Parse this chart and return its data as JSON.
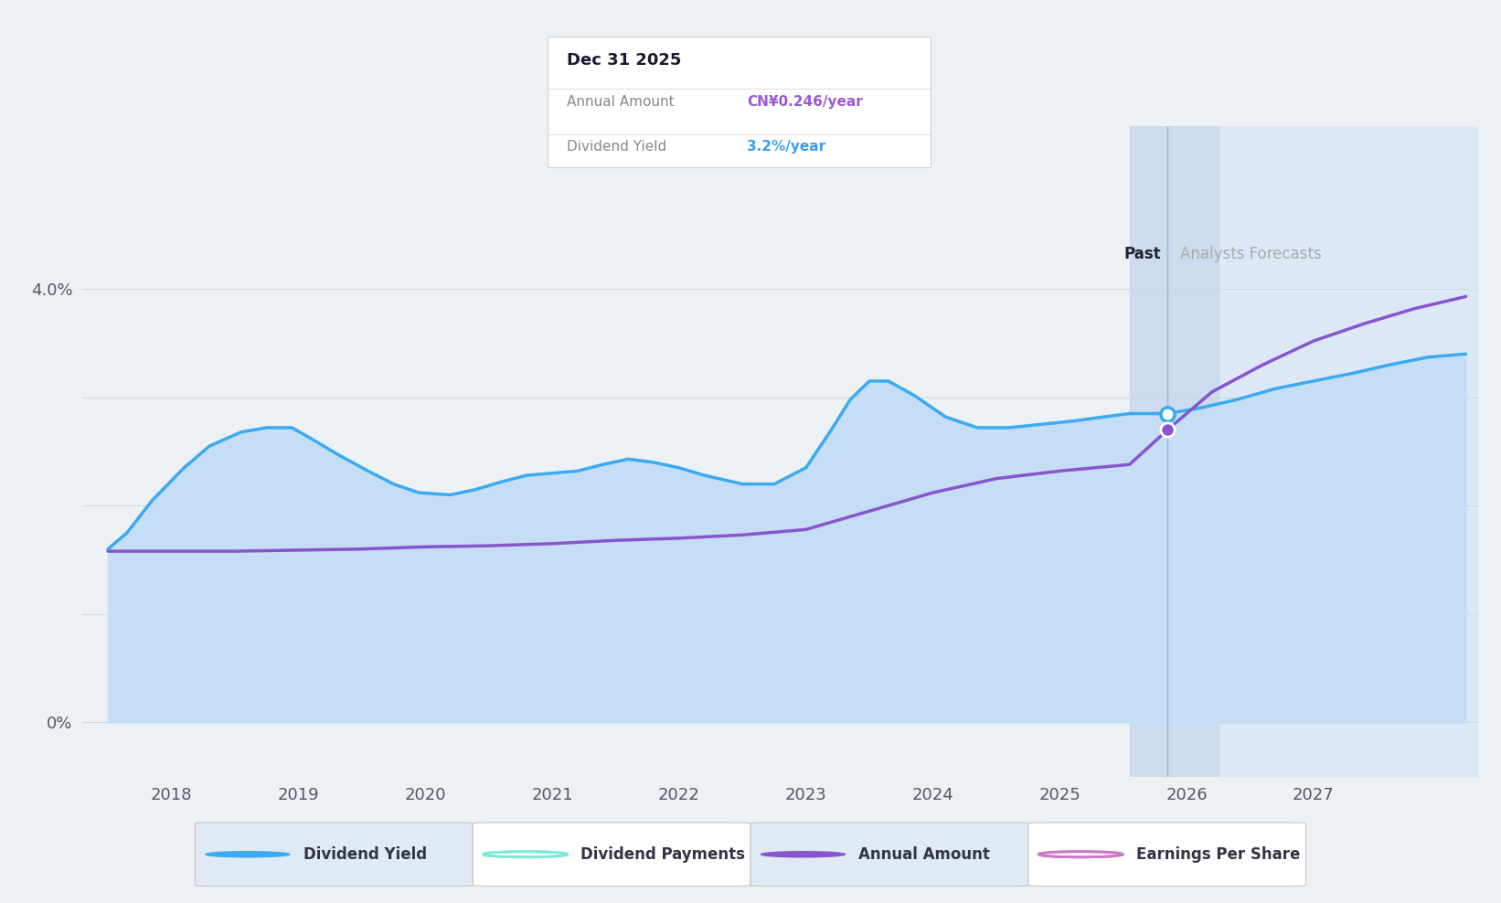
{
  "bg_color": "#eef1f4",
  "chart_fill_color": "#c5ddf5",
  "forecast_shade_color": "#dce8f5",
  "darker_band_color": "#c0d5ea",
  "tooltip": {
    "title": "Dec 31 2025",
    "annual_amount_label": "Annual Amount",
    "annual_amount_value": "CN¥0.246/year",
    "annual_amount_color": "#9b59d0",
    "dividend_yield_label": "Dividend Yield",
    "dividend_yield_value": "3.2%/year",
    "dividend_yield_color": "#3b9de8"
  },
  "dividend_yield_color": "#3aabf0",
  "annual_amount_color": "#8855cc",
  "grid_color": "#d0d8e0",
  "xlim": [
    2017.3,
    2028.3
  ],
  "ylim": [
    -0.5,
    5.5
  ],
  "past_line_x": 2025.85,
  "forecast_band_start": 2025.55,
  "forecast_band_end": 2026.25,
  "dividend_yield_x": [
    2017.5,
    2017.65,
    2017.85,
    2018.1,
    2018.3,
    2018.55,
    2018.75,
    2018.95,
    2019.1,
    2019.3,
    2019.55,
    2019.75,
    2019.95,
    2020.2,
    2020.4,
    2020.6,
    2020.8,
    2021.0,
    2021.2,
    2021.4,
    2021.6,
    2021.8,
    2022.0,
    2022.2,
    2022.5,
    2022.75,
    2023.0,
    2023.2,
    2023.35,
    2023.5,
    2023.65,
    2023.85,
    2024.1,
    2024.35,
    2024.6,
    2024.85,
    2025.1,
    2025.35,
    2025.55,
    2025.85,
    2026.1,
    2026.4,
    2026.7,
    2027.0,
    2027.3,
    2027.6,
    2027.9,
    2028.2
  ],
  "dividend_yield_y": [
    1.6,
    1.75,
    2.05,
    2.35,
    2.55,
    2.68,
    2.72,
    2.72,
    2.62,
    2.48,
    2.32,
    2.2,
    2.12,
    2.1,
    2.15,
    2.22,
    2.28,
    2.3,
    2.32,
    2.38,
    2.43,
    2.4,
    2.35,
    2.28,
    2.2,
    2.2,
    2.35,
    2.7,
    2.98,
    3.15,
    3.15,
    3.02,
    2.82,
    2.72,
    2.72,
    2.75,
    2.78,
    2.82,
    2.85,
    2.85,
    2.9,
    2.98,
    3.08,
    3.15,
    3.22,
    3.3,
    3.37,
    3.4
  ],
  "annual_amount_x": [
    2017.5,
    2018.0,
    2018.5,
    2019.0,
    2019.5,
    2020.0,
    2020.5,
    2021.0,
    2021.5,
    2022.0,
    2022.5,
    2023.0,
    2023.5,
    2024.0,
    2024.5,
    2025.0,
    2025.55,
    2025.85,
    2026.2,
    2026.6,
    2027.0,
    2027.4,
    2027.8,
    2028.2
  ],
  "annual_amount_y": [
    1.58,
    1.58,
    1.58,
    1.59,
    1.6,
    1.62,
    1.63,
    1.65,
    1.68,
    1.7,
    1.73,
    1.78,
    1.95,
    2.12,
    2.25,
    2.32,
    2.38,
    2.7,
    3.05,
    3.3,
    3.52,
    3.68,
    3.82,
    3.93
  ],
  "past_label": "Past",
  "forecast_label": "Analysts Forecasts",
  "legend_items": [
    {
      "label": "Dividend Yield",
      "marker_color": "#3aabf0",
      "filled": true,
      "bg": "#e0eaf4"
    },
    {
      "label": "Dividend Payments",
      "marker_color": "#7de8d8",
      "filled": false,
      "bg": "#ffffff"
    },
    {
      "label": "Annual Amount",
      "marker_color": "#8855cc",
      "filled": true,
      "bg": "#e0eaf4"
    },
    {
      "label": "Earnings Per Share",
      "marker_color": "#cc77cc",
      "filled": false,
      "bg": "#ffffff"
    }
  ]
}
